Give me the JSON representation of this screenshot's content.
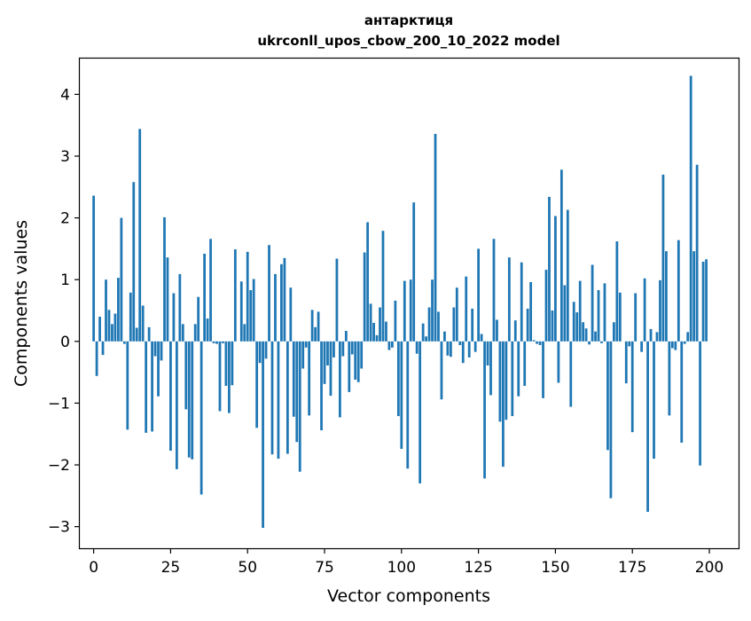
{
  "chart_data": {
    "type": "bar",
    "title_line1": "антарктиця",
    "title_line2": "ukrconll_upos_cbow_200_10_2022 model",
    "xlabel": "Vector components",
    "ylabel": "Components values",
    "xlim": [
      -4.5,
      209.5
    ],
    "ylim": [
      -3.35,
      4.58
    ],
    "xticks": [
      0,
      25,
      50,
      75,
      100,
      125,
      150,
      175,
      200
    ],
    "xtick_labels": [
      "0",
      "25",
      "50",
      "75",
      "100",
      "125",
      "150",
      "175",
      "200"
    ],
    "yticks": [
      -3,
      -2,
      -1,
      0,
      1,
      2,
      3,
      4
    ],
    "ytick_labels": [
      "−3",
      "−2",
      "−1",
      "0",
      "1",
      "2",
      "3",
      "4"
    ],
    "grid": false,
    "legend": "none",
    "bar_color": "#1f77b4",
    "x": [
      0,
      1,
      2,
      3,
      4,
      5,
      6,
      7,
      8,
      9,
      10,
      11,
      12,
      13,
      14,
      15,
      16,
      17,
      18,
      19,
      20,
      21,
      22,
      23,
      24,
      25,
      26,
      27,
      28,
      29,
      30,
      31,
      32,
      33,
      34,
      35,
      36,
      37,
      38,
      39,
      40,
      41,
      42,
      43,
      44,
      45,
      46,
      47,
      48,
      49,
      50,
      51,
      52,
      53,
      54,
      55,
      56,
      57,
      58,
      59,
      60,
      61,
      62,
      63,
      64,
      65,
      66,
      67,
      68,
      69,
      70,
      71,
      72,
      73,
      74,
      75,
      76,
      77,
      78,
      79,
      80,
      81,
      82,
      83,
      84,
      85,
      86,
      87,
      88,
      89,
      90,
      91,
      92,
      93,
      94,
      95,
      96,
      97,
      98,
      99,
      100,
      101,
      102,
      103,
      104,
      105,
      106,
      107,
      108,
      109,
      110,
      111,
      112,
      113,
      114,
      115,
      116,
      117,
      118,
      119,
      120,
      121,
      122,
      123,
      124,
      125,
      126,
      127,
      128,
      129,
      130,
      131,
      132,
      133,
      134,
      135,
      136,
      137,
      138,
      139,
      140,
      141,
      142,
      143,
      144,
      145,
      146,
      147,
      148,
      149,
      150,
      151,
      152,
      153,
      154,
      155,
      156,
      157,
      158,
      159,
      160,
      161,
      162,
      163,
      164,
      165,
      166,
      167,
      168,
      169,
      170,
      171,
      172,
      173,
      174,
      175,
      176,
      177,
      178,
      179,
      180,
      181,
      182,
      183,
      184,
      185,
      186,
      187,
      188,
      189,
      190,
      191,
      192,
      193,
      194,
      195,
      196,
      197,
      198,
      199
    ],
    "values": [
      2.36,
      -0.56,
      0.4,
      -0.22,
      1.0,
      0.51,
      0.28,
      0.45,
      1.03,
      2.0,
      -0.04,
      -1.43,
      0.79,
      2.58,
      0.22,
      3.44,
      0.58,
      -1.48,
      0.23,
      -1.46,
      -0.24,
      -0.89,
      -0.31,
      2.01,
      1.36,
      -1.77,
      0.78,
      -2.07,
      1.09,
      0.28,
      -1.1,
      -1.88,
      -1.91,
      0.28,
      0.72,
      -2.48,
      1.42,
      0.37,
      1.66,
      -0.03,
      -0.04,
      -1.13,
      -0.03,
      -0.72,
      -1.16,
      -0.71,
      1.49,
      0.0,
      0.97,
      0.28,
      1.45,
      0.83,
      1.01,
      -1.4,
      -0.35,
      -3.02,
      -0.28,
      1.56,
      -1.83,
      1.09,
      -1.9,
      1.25,
      1.35,
      -1.82,
      0.87,
      -1.22,
      -1.63,
      -2.11,
      -0.44,
      -0.1,
      -1.2,
      0.51,
      0.23,
      0.48,
      -1.44,
      -0.69,
      -0.39,
      -0.88,
      -0.26,
      1.34,
      -1.23,
      -0.24,
      0.17,
      -0.82,
      -0.21,
      -0.62,
      -0.66,
      -0.44,
      1.44,
      1.93,
      0.61,
      0.3,
      0.1,
      0.55,
      1.79,
      0.32,
      -0.14,
      -0.1,
      0.66,
      -1.21,
      -1.74,
      0.98,
      -2.06,
      1.0,
      2.25,
      -0.2,
      -2.3,
      0.29,
      0.08,
      0.55,
      1.0,
      3.36,
      0.48,
      -0.94,
      0.16,
      -0.23,
      -0.25,
      0.55,
      0.87,
      -0.06,
      -0.35,
      1.05,
      -0.26,
      0.53,
      -0.17,
      1.5,
      0.12,
      -2.22,
      -0.39,
      -0.87,
      1.66,
      0.35,
      -1.3,
      -2.03,
      -1.27,
      1.36,
      -1.21,
      0.34,
      -0.89,
      1.28,
      -0.72,
      0.53,
      0.96,
      0.02,
      -0.04,
      -0.06,
      -0.92,
      1.16,
      2.34,
      0.5,
      2.03,
      -0.67,
      2.78,
      0.91,
      2.13,
      -1.06,
      0.64,
      0.47,
      0.98,
      0.31,
      0.21,
      -0.05,
      1.24,
      0.16,
      0.83,
      -0.03,
      0.94,
      -1.76,
      -2.54,
      0.31,
      1.62,
      0.79,
      0.0,
      -0.68,
      -0.08,
      -1.47,
      0.78,
      0.0,
      -0.17,
      1.02,
      -2.76,
      0.2,
      -1.9,
      0.15,
      0.99,
      2.7,
      1.46,
      -1.2,
      -0.11,
      -0.14,
      1.64,
      -1.64,
      -0.04,
      0.15,
      4.3,
      1.46,
      2.86,
      -2.01,
      1.29,
      1.33
    ]
  }
}
